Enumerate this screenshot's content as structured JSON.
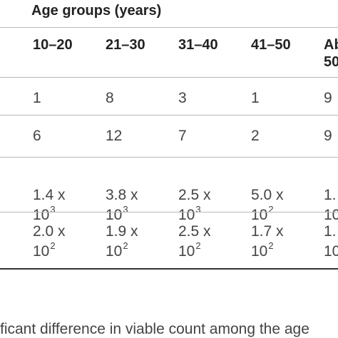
{
  "table": {
    "group_header": "Age groups (years)",
    "columns": [
      "10–20",
      "21–30",
      "31–40",
      "41–50",
      "Ab",
      "50"
    ],
    "rows": [
      {
        "cells": [
          "1",
          "8",
          "3",
          "1",
          "9"
        ]
      },
      {
        "cells": [
          "6",
          "12",
          "7",
          "2",
          "9"
        ]
      },
      {
        "cells": [
          {
            "line1": "1.4 x",
            "base": "10",
            "exp": "3"
          },
          {
            "line1": "3.8 x",
            "base": "10",
            "exp": "3"
          },
          {
            "line1": "2.5 x",
            "base": "10",
            "exp": "3"
          },
          {
            "line1": "5.0 x",
            "base": "10",
            "exp": "2"
          },
          {
            "line1": "1.",
            "base": "10",
            "exp": ""
          }
        ]
      },
      {
        "cells": [
          {
            "line1": "2.0 x",
            "base": "10",
            "exp": "2"
          },
          {
            "line1": "1.9 x",
            "base": "10",
            "exp": "2"
          },
          {
            "line1": "2.5 x",
            "base": "10",
            "exp": "2"
          },
          {
            "line1": "1.7 x",
            "base": "10",
            "exp": "2"
          },
          {
            "line1": "1.",
            "base": "10",
            "exp": ""
          }
        ]
      }
    ]
  },
  "footnote": "ficant difference in viable count among the age"
}
